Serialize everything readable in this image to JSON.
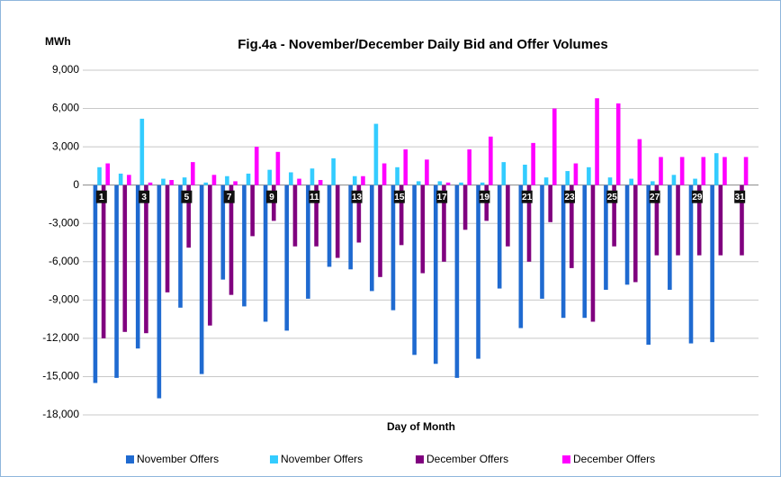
{
  "chart_data": {
    "type": "bar",
    "title": "Fig.4a - November/December Daily Bid and Offer Volumes",
    "y_label": "MWh",
    "x_label": "Day of Month",
    "categories": [
      "1",
      null,
      "3",
      null,
      "5",
      null,
      "7",
      null,
      "9",
      null,
      "11",
      null,
      "13",
      null,
      "15",
      null,
      "17",
      null,
      "19",
      null,
      "21",
      null,
      "23",
      null,
      "25",
      null,
      "27",
      null,
      "29",
      null,
      "31"
    ],
    "series": [
      {
        "name": "November Offers",
        "color": "#1f6ad0",
        "values": [
          -15500,
          -15100,
          -12800,
          -16700,
          -9600,
          -14800,
          -7400,
          -9500,
          -10700,
          -11400,
          -8900,
          -6400,
          -6600,
          -8300,
          -9800,
          -13300,
          -14000,
          -15100,
          -13600,
          -8100,
          -11200,
          -8900,
          -10400,
          -10400,
          -8200,
          -7800,
          -12500,
          -8200,
          -12400,
          -12300,
          null
        ]
      },
      {
        "name": "November Offers",
        "color": "#33ccff",
        "values": [
          1400,
          900,
          5200,
          500,
          600,
          200,
          700,
          900,
          1200,
          1000,
          1300,
          2100,
          700,
          4800,
          1400,
          300,
          300,
          200,
          200,
          1800,
          1600,
          600,
          1100,
          1400,
          600,
          500,
          300,
          800,
          500,
          2500,
          null
        ]
      },
      {
        "name": "December Offers",
        "color": "#80007f",
        "values": [
          -12000,
          -11500,
          -11600,
          -8400,
          -4900,
          -11000,
          -8600,
          -4000,
          -2800,
          -4800,
          -4800,
          -5700,
          -4500,
          -7200,
          -4700,
          -6900,
          -6000,
          -3500,
          -2800,
          -4800,
          -6000,
          -2900,
          -6500,
          -10700,
          -4800,
          -7600,
          -5500,
          -5500,
          -5500,
          -5500,
          -5500
        ]
      },
      {
        "name": "December Offers",
        "color": "#ff00ff",
        "values": [
          1700,
          800,
          200,
          400,
          1800,
          800,
          300,
          3000,
          2600,
          500,
          400,
          0,
          700,
          1700,
          2800,
          2000,
          200,
          2800,
          3800,
          0,
          3300,
          6000,
          1700,
          6800,
          6400,
          3600,
          2200,
          2200,
          2200,
          2200,
          2200
        ]
      }
    ],
    "ylim": [
      -18000,
      9000
    ],
    "yticks": [
      {
        "value": -18000,
        "label": "-18,000"
      },
      {
        "value": -15000,
        "label": "-15,000"
      },
      {
        "value": -12000,
        "label": "-12,000"
      },
      {
        "value": -9000,
        "label": "-9,000"
      },
      {
        "value": -6000,
        "label": "-6,000"
      },
      {
        "value": -3000,
        "label": "-3,000"
      },
      0,
      {
        "value": 3000,
        "label": "3,000"
      },
      {
        "value": 6000,
        "label": "6,000"
      },
      {
        "value": 9000,
        "label": "9,000"
      }
    ],
    "grid": true,
    "legend": "bottom"
  }
}
